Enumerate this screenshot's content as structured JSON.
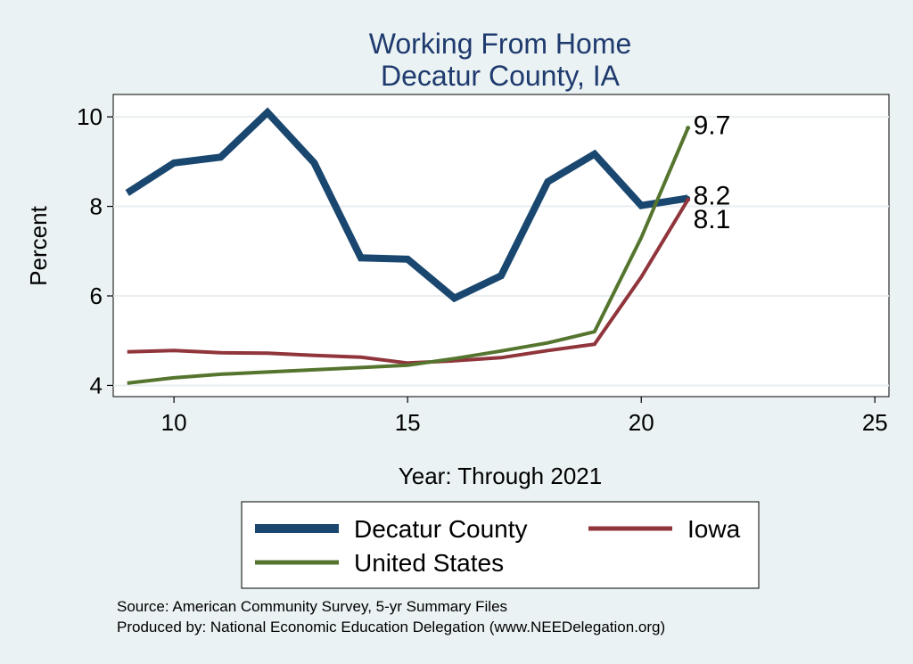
{
  "chart_data": {
    "type": "line",
    "title": "Working From Home",
    "subtitle": "Decatur County, IA",
    "xlabel": "Year: Through 2021",
    "ylabel": "Percent",
    "xlim": [
      8.7,
      25.3
    ],
    "ylim": [
      3.75,
      10.5
    ],
    "xticks": [
      10,
      15,
      20,
      25
    ],
    "yticks": [
      4,
      6,
      8,
      10
    ],
    "grid": true,
    "legend_position": "bottom",
    "series": [
      {
        "name": "Decatur County",
        "color": "#1a476f",
        "x": [
          9,
          10,
          11,
          12,
          13,
          14,
          15,
          16,
          17,
          18,
          19,
          20,
          21
        ],
        "values": [
          8.3,
          8.97,
          9.1,
          10.1,
          8.97,
          6.85,
          6.82,
          5.95,
          6.45,
          8.55,
          9.17,
          8.02,
          8.18
        ],
        "end_label": "8.2"
      },
      {
        "name": "Iowa",
        "color": "#90353b",
        "x": [
          9,
          10,
          11,
          12,
          13,
          14,
          15,
          16,
          17,
          18,
          19,
          20,
          21
        ],
        "values": [
          4.75,
          4.78,
          4.73,
          4.72,
          4.67,
          4.63,
          4.5,
          4.55,
          4.62,
          4.78,
          4.92,
          6.42,
          8.15
        ],
        "end_label": "8.1"
      },
      {
        "name": "United States",
        "color": "#55752f",
        "x": [
          9,
          10,
          11,
          12,
          13,
          14,
          15,
          16,
          17,
          18,
          19,
          20,
          21
        ],
        "values": [
          4.05,
          4.17,
          4.25,
          4.3,
          4.35,
          4.4,
          4.45,
          4.6,
          4.77,
          4.95,
          5.2,
          7.3,
          9.75
        ],
        "end_label": "9.7"
      }
    ],
    "notes": [
      "Source: American Community Survey, 5-yr Summary Files",
      "Produced by: National Economic Education Delegation (www.NEEDelegation.org)"
    ]
  }
}
